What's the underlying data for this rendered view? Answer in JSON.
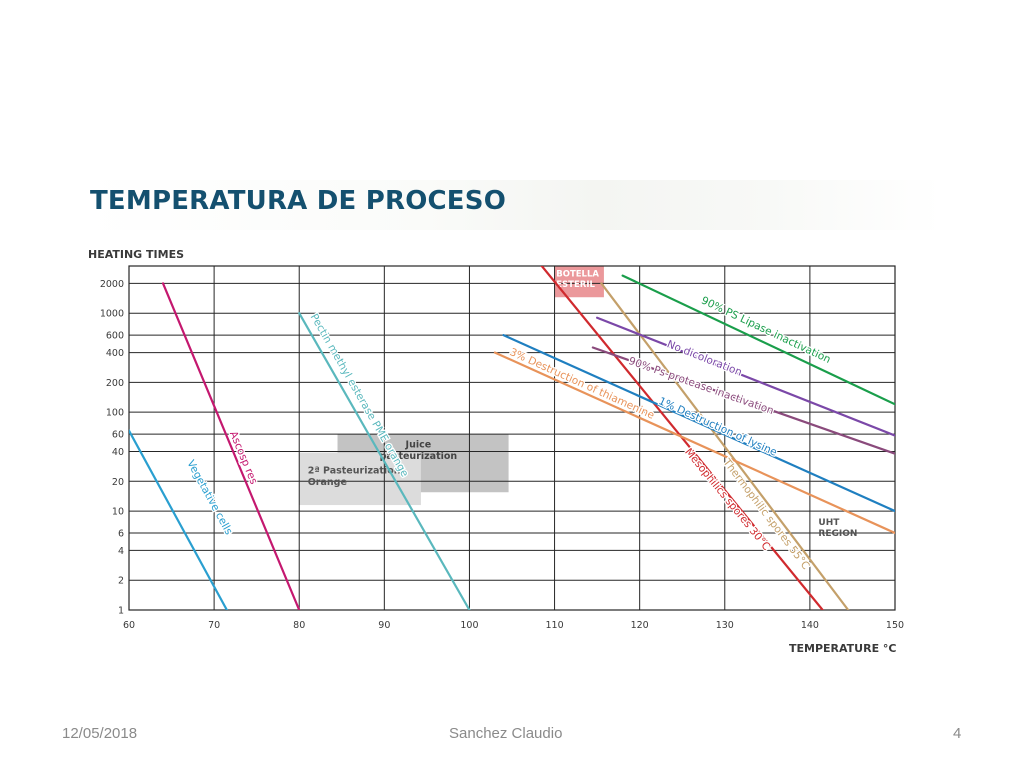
{
  "slide": {
    "footer_date": "12/05/2018",
    "footer_author": "Sanchez Claudio",
    "footer_page": "4"
  },
  "chart_data": {
    "type": "line",
    "title": "TEMPERATURA DE PROCESO",
    "ylabel": "HEATING TIMES",
    "xlabel": "TEMPERATURE °C",
    "xlim": [
      60,
      150
    ],
    "ylim": [
      1,
      3000
    ],
    "y_scale": "log",
    "x_ticks": [
      60,
      70,
      80,
      90,
      100,
      110,
      120,
      130,
      140,
      150
    ],
    "y_ticks": [
      1,
      2,
      4,
      6,
      10,
      20,
      40,
      60,
      100,
      200,
      400,
      600,
      1000,
      2000
    ],
    "grid": true,
    "series": [
      {
        "name": "Vegetative cells",
        "color": "#2a9fd0",
        "points": [
          [
            60,
            65
          ],
          [
            71.5,
            1
          ]
        ]
      },
      {
        "name": "Ascosp res",
        "color": "#c4186f",
        "points": [
          [
            64,
            2000
          ],
          [
            80,
            1
          ]
        ]
      },
      {
        "name": "Pectin methyl esterase PME orange",
        "color": "#5ab8bd",
        "points": [
          [
            80,
            1000
          ],
          [
            100,
            1
          ]
        ]
      },
      {
        "name": "Mesophilics spores 30°C",
        "color": "#d02a2e",
        "points": [
          [
            108.5,
            3000
          ],
          [
            141.5,
            1
          ]
        ]
      },
      {
        "name": "Thermophilic spores 55°C",
        "color": "#c4a06a",
        "points": [
          [
            115.5,
            2000
          ],
          [
            144.5,
            1
          ]
        ]
      },
      {
        "name": "3% Destruction of thiamenine",
        "color": "#e8935a",
        "points": [
          [
            103,
            400
          ],
          [
            150,
            6
          ]
        ]
      },
      {
        "name": "1% Destruction of lysine",
        "color": "#1f7fc0",
        "points": [
          [
            104,
            600
          ],
          [
            150,
            10
          ]
        ]
      },
      {
        "name": "90% Ps-protease inactivation",
        "color": "#8a4a7c",
        "points": [
          [
            114.5,
            450
          ],
          [
            150,
            38
          ]
        ]
      },
      {
        "name": "No dicoloration",
        "color": "#7b48a8",
        "points": [
          [
            115,
            900
          ],
          [
            150,
            58
          ]
        ]
      },
      {
        "name": "90% PS Lipase inactivation",
        "color": "#1a9e4b",
        "points": [
          [
            118,
            2400
          ],
          [
            150,
            120
          ]
        ]
      }
    ],
    "regions": [
      {
        "label": "BOTELLA ESTERIL",
        "color": "#e8868a"
      },
      {
        "label": "Juice pasteurization",
        "color": "#c3c3c3"
      },
      {
        "label": "2ª Pasteurization Orange",
        "color": "#dcdcdc"
      },
      {
        "label": "UHT REGION",
        "color": "none"
      }
    ]
  }
}
